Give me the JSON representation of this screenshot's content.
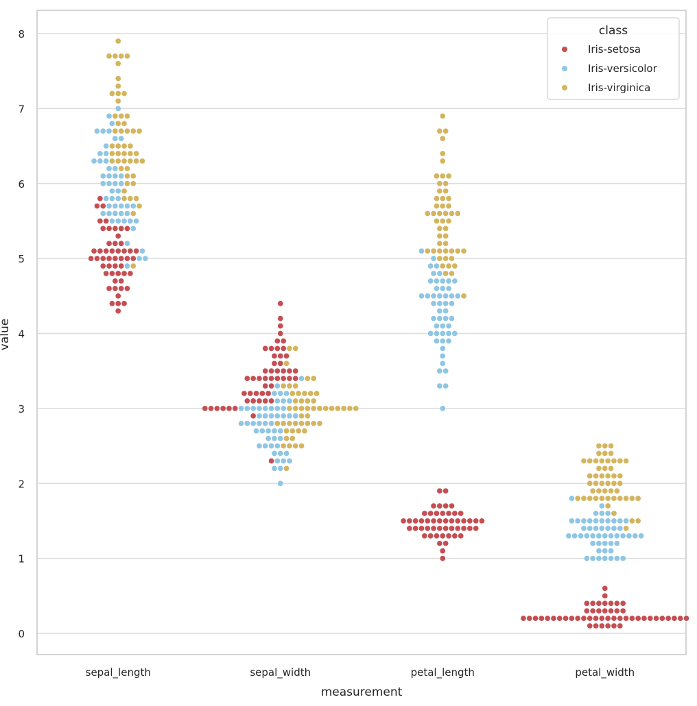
{
  "chart_data": {
    "type": "scatter",
    "subtype": "swarm",
    "title": "",
    "xlabel": "measurement",
    "ylabel": "value",
    "categories": [
      "sepal_length",
      "sepal_width",
      "petal_length",
      "petal_width"
    ],
    "yticks": [
      "0",
      "1",
      "2",
      "3",
      "4",
      "5",
      "6",
      "7",
      "8"
    ],
    "ylim": [
      -0.28,
      8.3
    ],
    "grid": true,
    "legend": {
      "title": "class",
      "placement": "top-right",
      "entries": [
        "Iris-setosa",
        "Iris-versicolor",
        "Iris-virginica"
      ]
    },
    "colors": {
      "Iris-setosa": "#c44e52",
      "Iris-versicolor": "#8ec6e4",
      "Iris-virginica": "#d4b55e"
    },
    "series": [
      {
        "name": "Iris-setosa",
        "values": {
          "sepal_length": [
            5.1,
            4.9,
            4.7,
            4.6,
            5.0,
            5.4,
            4.6,
            5.0,
            4.4,
            4.9,
            5.4,
            4.8,
            4.8,
            4.3,
            5.8,
            5.7,
            5.4,
            5.1,
            5.7,
            5.1,
            5.4,
            5.1,
            4.6,
            5.1,
            4.8,
            5.0,
            5.0,
            5.2,
            5.2,
            4.7,
            4.8,
            5.4,
            5.2,
            5.5,
            4.9,
            5.0,
            5.5,
            4.9,
            4.4,
            5.1,
            5.0,
            4.5,
            4.4,
            5.0,
            5.1,
            4.8,
            5.1,
            4.6,
            5.3,
            5.0
          ],
          "sepal_width": [
            3.5,
            3.0,
            3.2,
            3.1,
            3.6,
            3.9,
            3.4,
            3.4,
            2.9,
            3.1,
            3.7,
            3.4,
            3.0,
            3.0,
            4.0,
            4.4,
            3.9,
            3.5,
            3.8,
            3.8,
            3.4,
            3.7,
            3.6,
            3.3,
            3.4,
            3.0,
            3.4,
            3.5,
            3.4,
            3.2,
            3.1,
            3.4,
            4.1,
            4.2,
            3.1,
            3.2,
            3.5,
            3.1,
            3.0,
            3.4,
            3.5,
            2.3,
            3.2,
            3.5,
            3.8,
            3.0,
            3.8,
            3.2,
            3.7,
            3.3
          ],
          "petal_length": [
            1.4,
            1.4,
            1.3,
            1.5,
            1.4,
            1.7,
            1.4,
            1.5,
            1.4,
            1.5,
            1.5,
            1.6,
            1.4,
            1.1,
            1.2,
            1.5,
            1.3,
            1.4,
            1.7,
            1.5,
            1.7,
            1.5,
            1.0,
            1.7,
            1.9,
            1.6,
            1.6,
            1.5,
            1.4,
            1.6,
            1.6,
            1.5,
            1.5,
            1.4,
            1.5,
            1.2,
            1.3,
            1.5,
            1.3,
            1.5,
            1.3,
            1.3,
            1.3,
            1.6,
            1.9,
            1.4,
            1.6,
            1.4,
            1.5,
            1.4
          ],
          "petal_width": [
            0.2,
            0.2,
            0.2,
            0.2,
            0.2,
            0.4,
            0.3,
            0.2,
            0.2,
            0.1,
            0.2,
            0.2,
            0.1,
            0.1,
            0.2,
            0.4,
            0.4,
            0.3,
            0.3,
            0.3,
            0.2,
            0.4,
            0.2,
            0.5,
            0.2,
            0.2,
            0.4,
            0.2,
            0.2,
            0.2,
            0.2,
            0.4,
            0.1,
            0.2,
            0.1,
            0.2,
            0.2,
            0.1,
            0.2,
            0.2,
            0.3,
            0.3,
            0.2,
            0.6,
            0.4,
            0.3,
            0.2,
            0.2,
            0.2,
            0.2
          ]
        }
      },
      {
        "name": "Iris-versicolor",
        "values": {
          "sepal_length": [
            7.0,
            6.4,
            6.9,
            5.5,
            6.5,
            5.7,
            6.3,
            4.9,
            6.6,
            5.2,
            5.0,
            5.9,
            6.0,
            6.1,
            5.6,
            6.7,
            5.6,
            5.8,
            6.2,
            5.6,
            5.9,
            6.1,
            6.3,
            6.1,
            6.4,
            6.6,
            6.8,
            6.7,
            6.0,
            5.7,
            5.5,
            5.5,
            5.8,
            6.0,
            5.4,
            6.0,
            6.7,
            6.3,
            5.6,
            5.5,
            5.5,
            6.1,
            5.8,
            5.0,
            5.6,
            5.7,
            5.7,
            6.2,
            5.1,
            5.7
          ],
          "sepal_width": [
            3.2,
            3.2,
            3.1,
            2.3,
            2.8,
            2.8,
            3.3,
            2.4,
            2.9,
            2.7,
            2.0,
            3.0,
            2.2,
            2.9,
            2.9,
            3.1,
            3.0,
            2.7,
            2.2,
            2.5,
            3.2,
            2.8,
            2.5,
            2.8,
            2.9,
            3.0,
            2.8,
            3.0,
            2.9,
            2.6,
            2.4,
            2.4,
            2.7,
            2.7,
            3.0,
            3.4,
            3.1,
            2.3,
            3.0,
            2.5,
            2.6,
            3.0,
            2.6,
            2.3,
            2.7,
            3.0,
            2.9,
            2.9,
            2.5,
            2.8
          ],
          "petal_length": [
            4.7,
            4.5,
            4.9,
            4.0,
            4.6,
            4.5,
            4.7,
            3.3,
            4.6,
            3.9,
            3.5,
            4.2,
            4.0,
            4.7,
            3.6,
            4.4,
            4.5,
            4.1,
            4.5,
            3.9,
            4.8,
            4.0,
            4.9,
            4.7,
            4.3,
            4.4,
            4.8,
            5.0,
            4.5,
            3.5,
            3.8,
            3.7,
            3.9,
            5.1,
            4.5,
            4.5,
            4.7,
            4.4,
            4.1,
            4.0,
            4.4,
            4.6,
            4.0,
            3.3,
            4.2,
            4.2,
            4.2,
            4.3,
            3.0,
            4.1
          ],
          "petal_width": [
            1.4,
            1.5,
            1.5,
            1.3,
            1.5,
            1.3,
            1.6,
            1.0,
            1.3,
            1.4,
            1.0,
            1.5,
            1.0,
            1.4,
            1.3,
            1.4,
            1.5,
            1.0,
            1.5,
            1.1,
            1.8,
            1.3,
            1.5,
            1.2,
            1.3,
            1.4,
            1.4,
            1.7,
            1.5,
            1.0,
            1.1,
            1.0,
            1.2,
            1.6,
            1.5,
            1.6,
            1.5,
            1.3,
            1.3,
            1.3,
            1.2,
            1.4,
            1.2,
            1.0,
            1.3,
            1.2,
            1.3,
            1.3,
            1.1,
            1.3
          ]
        }
      },
      {
        "name": "Iris-virginica",
        "values": {
          "sepal_length": [
            6.3,
            5.8,
            7.1,
            6.3,
            6.5,
            7.6,
            4.9,
            7.3,
            6.7,
            7.2,
            6.5,
            6.4,
            6.8,
            5.7,
            5.8,
            6.4,
            6.5,
            7.7,
            7.7,
            6.0,
            6.9,
            5.6,
            7.7,
            6.3,
            6.7,
            7.2,
            6.2,
            6.1,
            6.4,
            7.2,
            7.4,
            7.9,
            6.4,
            6.3,
            6.1,
            7.7,
            6.3,
            6.4,
            6.0,
            6.9,
            6.7,
            6.9,
            5.8,
            6.8,
            6.7,
            6.7,
            6.3,
            6.5,
            6.2,
            5.9
          ],
          "sepal_width": [
            3.3,
            2.7,
            3.0,
            2.9,
            3.0,
            3.0,
            2.5,
            2.9,
            2.5,
            3.6,
            3.2,
            2.7,
            3.0,
            2.5,
            2.8,
            3.2,
            3.0,
            3.8,
            2.6,
            2.2,
            3.2,
            2.8,
            2.8,
            2.7,
            3.3,
            3.2,
            2.8,
            3.0,
            2.8,
            3.0,
            2.8,
            3.8,
            2.8,
            2.8,
            2.6,
            3.0,
            3.4,
            3.1,
            3.0,
            3.1,
            3.1,
            3.1,
            2.7,
            3.2,
            3.3,
            3.0,
            2.5,
            3.0,
            3.4,
            3.0
          ],
          "petal_length": [
            6.0,
            5.1,
            5.9,
            5.6,
            5.8,
            6.6,
            4.5,
            6.3,
            5.8,
            6.1,
            5.1,
            5.3,
            5.5,
            5.0,
            5.1,
            5.3,
            5.5,
            6.7,
            6.9,
            5.0,
            5.7,
            4.9,
            6.7,
            4.9,
            5.7,
            6.0,
            4.8,
            4.9,
            5.6,
            5.8,
            6.1,
            6.4,
            5.6,
            5.1,
            5.6,
            6.1,
            5.6,
            5.5,
            4.8,
            5.4,
            5.6,
            5.1,
            5.1,
            5.9,
            5.7,
            5.2,
            5.0,
            5.2,
            5.4,
            5.1
          ],
          "petal_width": [
            2.5,
            1.9,
            2.1,
            1.8,
            2.2,
            2.1,
            1.7,
            1.8,
            1.8,
            2.5,
            2.0,
            1.9,
            2.1,
            2.0,
            2.4,
            2.3,
            1.8,
            2.2,
            2.3,
            1.5,
            2.3,
            2.0,
            2.0,
            1.8,
            2.1,
            1.8,
            1.8,
            1.8,
            2.1,
            1.6,
            1.9,
            2.0,
            2.2,
            1.5,
            1.4,
            2.3,
            2.4,
            1.8,
            1.8,
            2.1,
            2.4,
            2.3,
            1.9,
            2.3,
            2.5,
            2.3,
            1.9,
            2.0,
            2.3,
            1.8
          ]
        }
      }
    ]
  }
}
